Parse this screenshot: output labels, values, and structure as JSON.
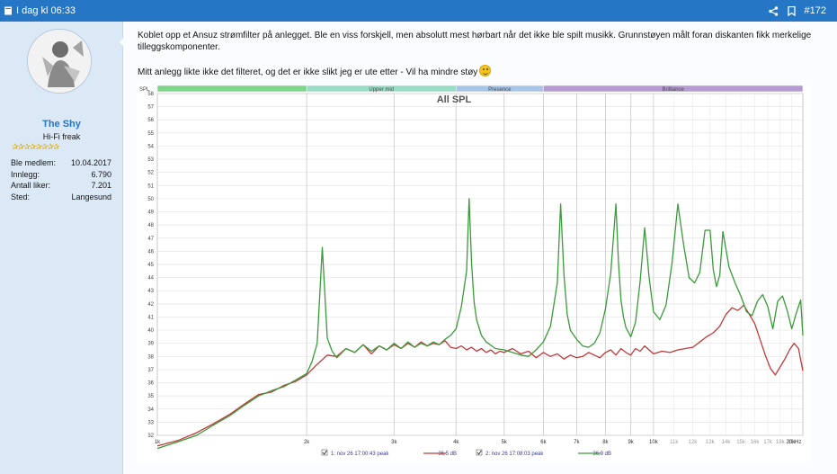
{
  "header": {
    "time_label": "I dag kl 06:33",
    "post_number": "#172"
  },
  "user": {
    "name": "The Shy",
    "title": "Hi-Fi freak",
    "stars": "✰✰✰✰✰✰✰✰",
    "stats": [
      {
        "label": "Ble medlem:",
        "value": "10.04.2017"
      },
      {
        "label": "Innlegg:",
        "value": "6.790"
      },
      {
        "label": "Antall liker:",
        "value": "7.201"
      },
      {
        "label": "Sted:",
        "value": "Langesund"
      }
    ]
  },
  "post": {
    "paragraph1": "Koblet opp et Ansuz strømfilter på anlegget. Ble en viss forskjell, men absolutt mest hørbart når det ikke ble spilt musikk. Grunnstøyen målt foran diskanten fikk merkelige tilleggskomponenter.",
    "paragraph2": "Mitt anlegg likte ikke det filteret, og det er ikke slikt jeg er ute etter - Vil ha mindre støy"
  },
  "chart_data": {
    "type": "line",
    "title": "All SPL",
    "ylabel": "SPL",
    "ylim": [
      32,
      58
    ],
    "yticks": [
      32,
      33,
      34,
      35,
      36,
      37,
      38,
      39,
      40,
      41,
      42,
      43,
      44,
      45,
      46,
      47,
      48,
      49,
      50,
      51,
      52,
      53,
      54,
      55,
      56,
      57,
      58
    ],
    "xscale": "log",
    "xlim": [
      1000,
      20000
    ],
    "xticks": [
      {
        "v": 1000,
        "label": "1k",
        "major": true
      },
      {
        "v": 2000,
        "label": "2k",
        "major": true
      },
      {
        "v": 3000,
        "label": "3k",
        "major": true
      },
      {
        "v": 4000,
        "label": "4k",
        "major": true
      },
      {
        "v": 5000,
        "label": "5k",
        "major": true
      },
      {
        "v": 6000,
        "label": "6k",
        "major": true
      },
      {
        "v": 7000,
        "label": "7k",
        "major": true
      },
      {
        "v": 8000,
        "label": "8k",
        "major": true
      },
      {
        "v": 9000,
        "label": "9k",
        "major": true
      },
      {
        "v": 10000,
        "label": "10k",
        "major": true
      },
      {
        "v": 11000,
        "label": "11k",
        "major": false
      },
      {
        "v": 12000,
        "label": "12k",
        "major": false
      },
      {
        "v": 13000,
        "label": "13k",
        "major": false
      },
      {
        "v": 14000,
        "label": "14k",
        "major": false
      },
      {
        "v": 15000,
        "label": "15k",
        "major": false
      },
      {
        "v": 16000,
        "label": "16k",
        "major": false
      },
      {
        "v": 17000,
        "label": "17k",
        "major": false
      },
      {
        "v": 18000,
        "label": "18k",
        "major": false
      },
      {
        "v": 19000,
        "label": "19k",
        "major": false
      },
      {
        "v": 20000,
        "label": "20kHz",
        "major": true
      }
    ],
    "bands": [
      {
        "label": "",
        "from": 1000,
        "to": 2000,
        "color": "#7fd58a"
      },
      {
        "label": "Upper mid",
        "from": 2000,
        "to": 4000,
        "color": "#9bdcc5"
      },
      {
        "label": "Presence",
        "from": 4000,
        "to": 6000,
        "color": "#a8c4e6"
      },
      {
        "label": "Brilliance",
        "from": 6000,
        "to": 20000,
        "color": "#b59bd1"
      }
    ],
    "series": [
      {
        "name": "1: nov 26 17:00:43 peak",
        "level": "36,5 dB",
        "color": "#c0393b",
        "x": [
          1000,
          1100,
          1200,
          1300,
          1400,
          1500,
          1600,
          1700,
          1800,
          1900,
          2000,
          2100,
          2200,
          2300,
          2400,
          2500,
          2600,
          2700,
          2800,
          2900,
          3000,
          3100,
          3200,
          3300,
          3400,
          3500,
          3600,
          3700,
          3800,
          3900,
          4000,
          4100,
          4200,
          4300,
          4400,
          4500,
          4600,
          4700,
          4800,
          4900,
          5000,
          5200,
          5400,
          5600,
          5800,
          6000,
          6200,
          6400,
          6600,
          6800,
          7000,
          7200,
          7400,
          7600,
          7800,
          8000,
          8200,
          8400,
          8600,
          8800,
          9000,
          9200,
          9400,
          9600,
          9800,
          10000,
          10400,
          10800,
          11200,
          11600,
          12000,
          12400,
          12800,
          13200,
          13600,
          14000,
          14400,
          14800,
          15200,
          15600,
          16000,
          16400,
          16800,
          17200,
          17600,
          18000,
          18400,
          18800,
          19200,
          19600,
          20000
        ],
        "y": [
          31.2,
          31.6,
          32.2,
          32.9,
          33.6,
          34.4,
          35.1,
          35.3,
          35.8,
          36.1,
          36.6,
          37.4,
          38.1,
          38.0,
          38.6,
          38.3,
          38.9,
          38.2,
          38.8,
          38.5,
          38.9,
          38.6,
          39.0,
          38.7,
          39.1,
          38.8,
          39.0,
          38.9,
          39.2,
          38.7,
          38.6,
          38.8,
          38.5,
          38.7,
          38.4,
          38.6,
          38.3,
          38.5,
          38.2,
          38.4,
          38.3,
          38.6,
          38.2,
          38.4,
          37.9,
          38.3,
          38.0,
          38.2,
          37.8,
          38.1,
          37.9,
          38.0,
          38.3,
          38.1,
          37.9,
          38.3,
          38.5,
          38.1,
          38.6,
          38.3,
          38.1,
          38.6,
          38.4,
          38.8,
          38.5,
          38.2,
          38.4,
          38.3,
          38.5,
          38.6,
          38.7,
          39.1,
          39.5,
          39.8,
          40.3,
          41.2,
          41.7,
          41.5,
          41.9,
          41.2,
          40.5,
          39.3,
          38.1,
          37.1,
          36.6,
          37.2,
          37.8,
          38.5,
          39.0,
          38.6,
          36.9
        ]
      },
      {
        "name": "2: nov 26 17:08:03 peak",
        "level": "36,9 dB",
        "color": "#3a9b3a",
        "x": [
          1000,
          1100,
          1200,
          1300,
          1400,
          1500,
          1600,
          1700,
          1800,
          1900,
          2000,
          2050,
          2100,
          2150,
          2200,
          2250,
          2300,
          2400,
          2500,
          2600,
          2700,
          2800,
          2900,
          3000,
          3100,
          3200,
          3300,
          3400,
          3500,
          3600,
          3700,
          3800,
          3900,
          4000,
          4100,
          4200,
          4250,
          4300,
          4350,
          4400,
          4500,
          4600,
          4800,
          5000,
          5200,
          5400,
          5600,
          5800,
          6000,
          6200,
          6400,
          6500,
          6600,
          6700,
          6800,
          7000,
          7200,
          7400,
          7600,
          7800,
          8000,
          8200,
          8400,
          8500,
          8600,
          8700,
          8800,
          9000,
          9200,
          9400,
          9600,
          9800,
          10000,
          10300,
          10600,
          10900,
          11200,
          11500,
          11800,
          12100,
          12400,
          12700,
          13000,
          13200,
          13400,
          13600,
          13800,
          14200,
          14600,
          15000,
          15400,
          15800,
          16200,
          16600,
          17000,
          17400,
          17800,
          18200,
          18600,
          19000,
          19400,
          19800,
          20000
        ],
        "y": [
          31.0,
          31.5,
          32.0,
          32.8,
          33.5,
          34.3,
          35.0,
          35.4,
          35.7,
          36.2,
          36.7,
          37.6,
          39.0,
          46.3,
          39.4,
          38.4,
          37.9,
          38.6,
          38.3,
          38.9,
          38.4,
          38.8,
          38.5,
          39.0,
          38.6,
          39.1,
          38.7,
          39.0,
          38.8,
          39.1,
          38.9,
          39.3,
          39.6,
          40.1,
          41.8,
          44.5,
          50.0,
          45.0,
          42.1,
          40.8,
          39.6,
          39.1,
          38.6,
          38.5,
          38.3,
          38.1,
          38.0,
          38.5,
          39.1,
          40.3,
          43.6,
          49.6,
          44.2,
          41.2,
          40.0,
          39.3,
          38.8,
          38.7,
          39.0,
          39.8,
          41.6,
          44.3,
          49.6,
          45.2,
          42.3,
          41.0,
          40.2,
          39.5,
          40.6,
          43.7,
          47.8,
          44.0,
          41.4,
          40.8,
          41.9,
          45.1,
          49.6,
          46.5,
          44.0,
          43.6,
          44.4,
          47.6,
          47.6,
          44.6,
          43.3,
          44.2,
          47.5,
          44.8,
          43.6,
          42.6,
          41.4,
          41.1,
          42.2,
          42.7,
          41.8,
          40.1,
          42.2,
          42.6,
          41.5,
          40.1,
          41.3,
          42.3,
          39.6
        ]
      }
    ]
  }
}
